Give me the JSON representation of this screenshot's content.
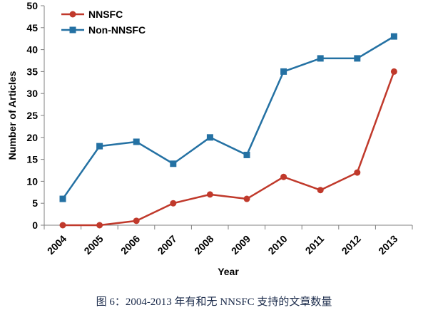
{
  "caption": "图 6：2004-2013 年有和无 NNSFC 支持的文章数量",
  "chart_data": {
    "type": "line",
    "x": [
      "2004",
      "2005",
      "2006",
      "2007",
      "2008",
      "2009",
      "2010",
      "2011",
      "2012",
      "2013"
    ],
    "series": [
      {
        "name": "NNSFC",
        "values": [
          0,
          0,
          1,
          5,
          7,
          6,
          11,
          8,
          12,
          35
        ],
        "color": "#c0392b",
        "marker": "circle"
      },
      {
        "name": "Non-NNSFC",
        "values": [
          6,
          18,
          19,
          14,
          20,
          16,
          35,
          38,
          38,
          43
        ],
        "color": "#2471a3",
        "marker": "square"
      }
    ],
    "xlabel": "Year",
    "ylabel": "Number of Articles",
    "ylim": [
      0,
      50
    ],
    "yticks": [
      0,
      5,
      10,
      15,
      20,
      25,
      30,
      35,
      40,
      45,
      50
    ],
    "grid": false,
    "legend": "top-left"
  }
}
